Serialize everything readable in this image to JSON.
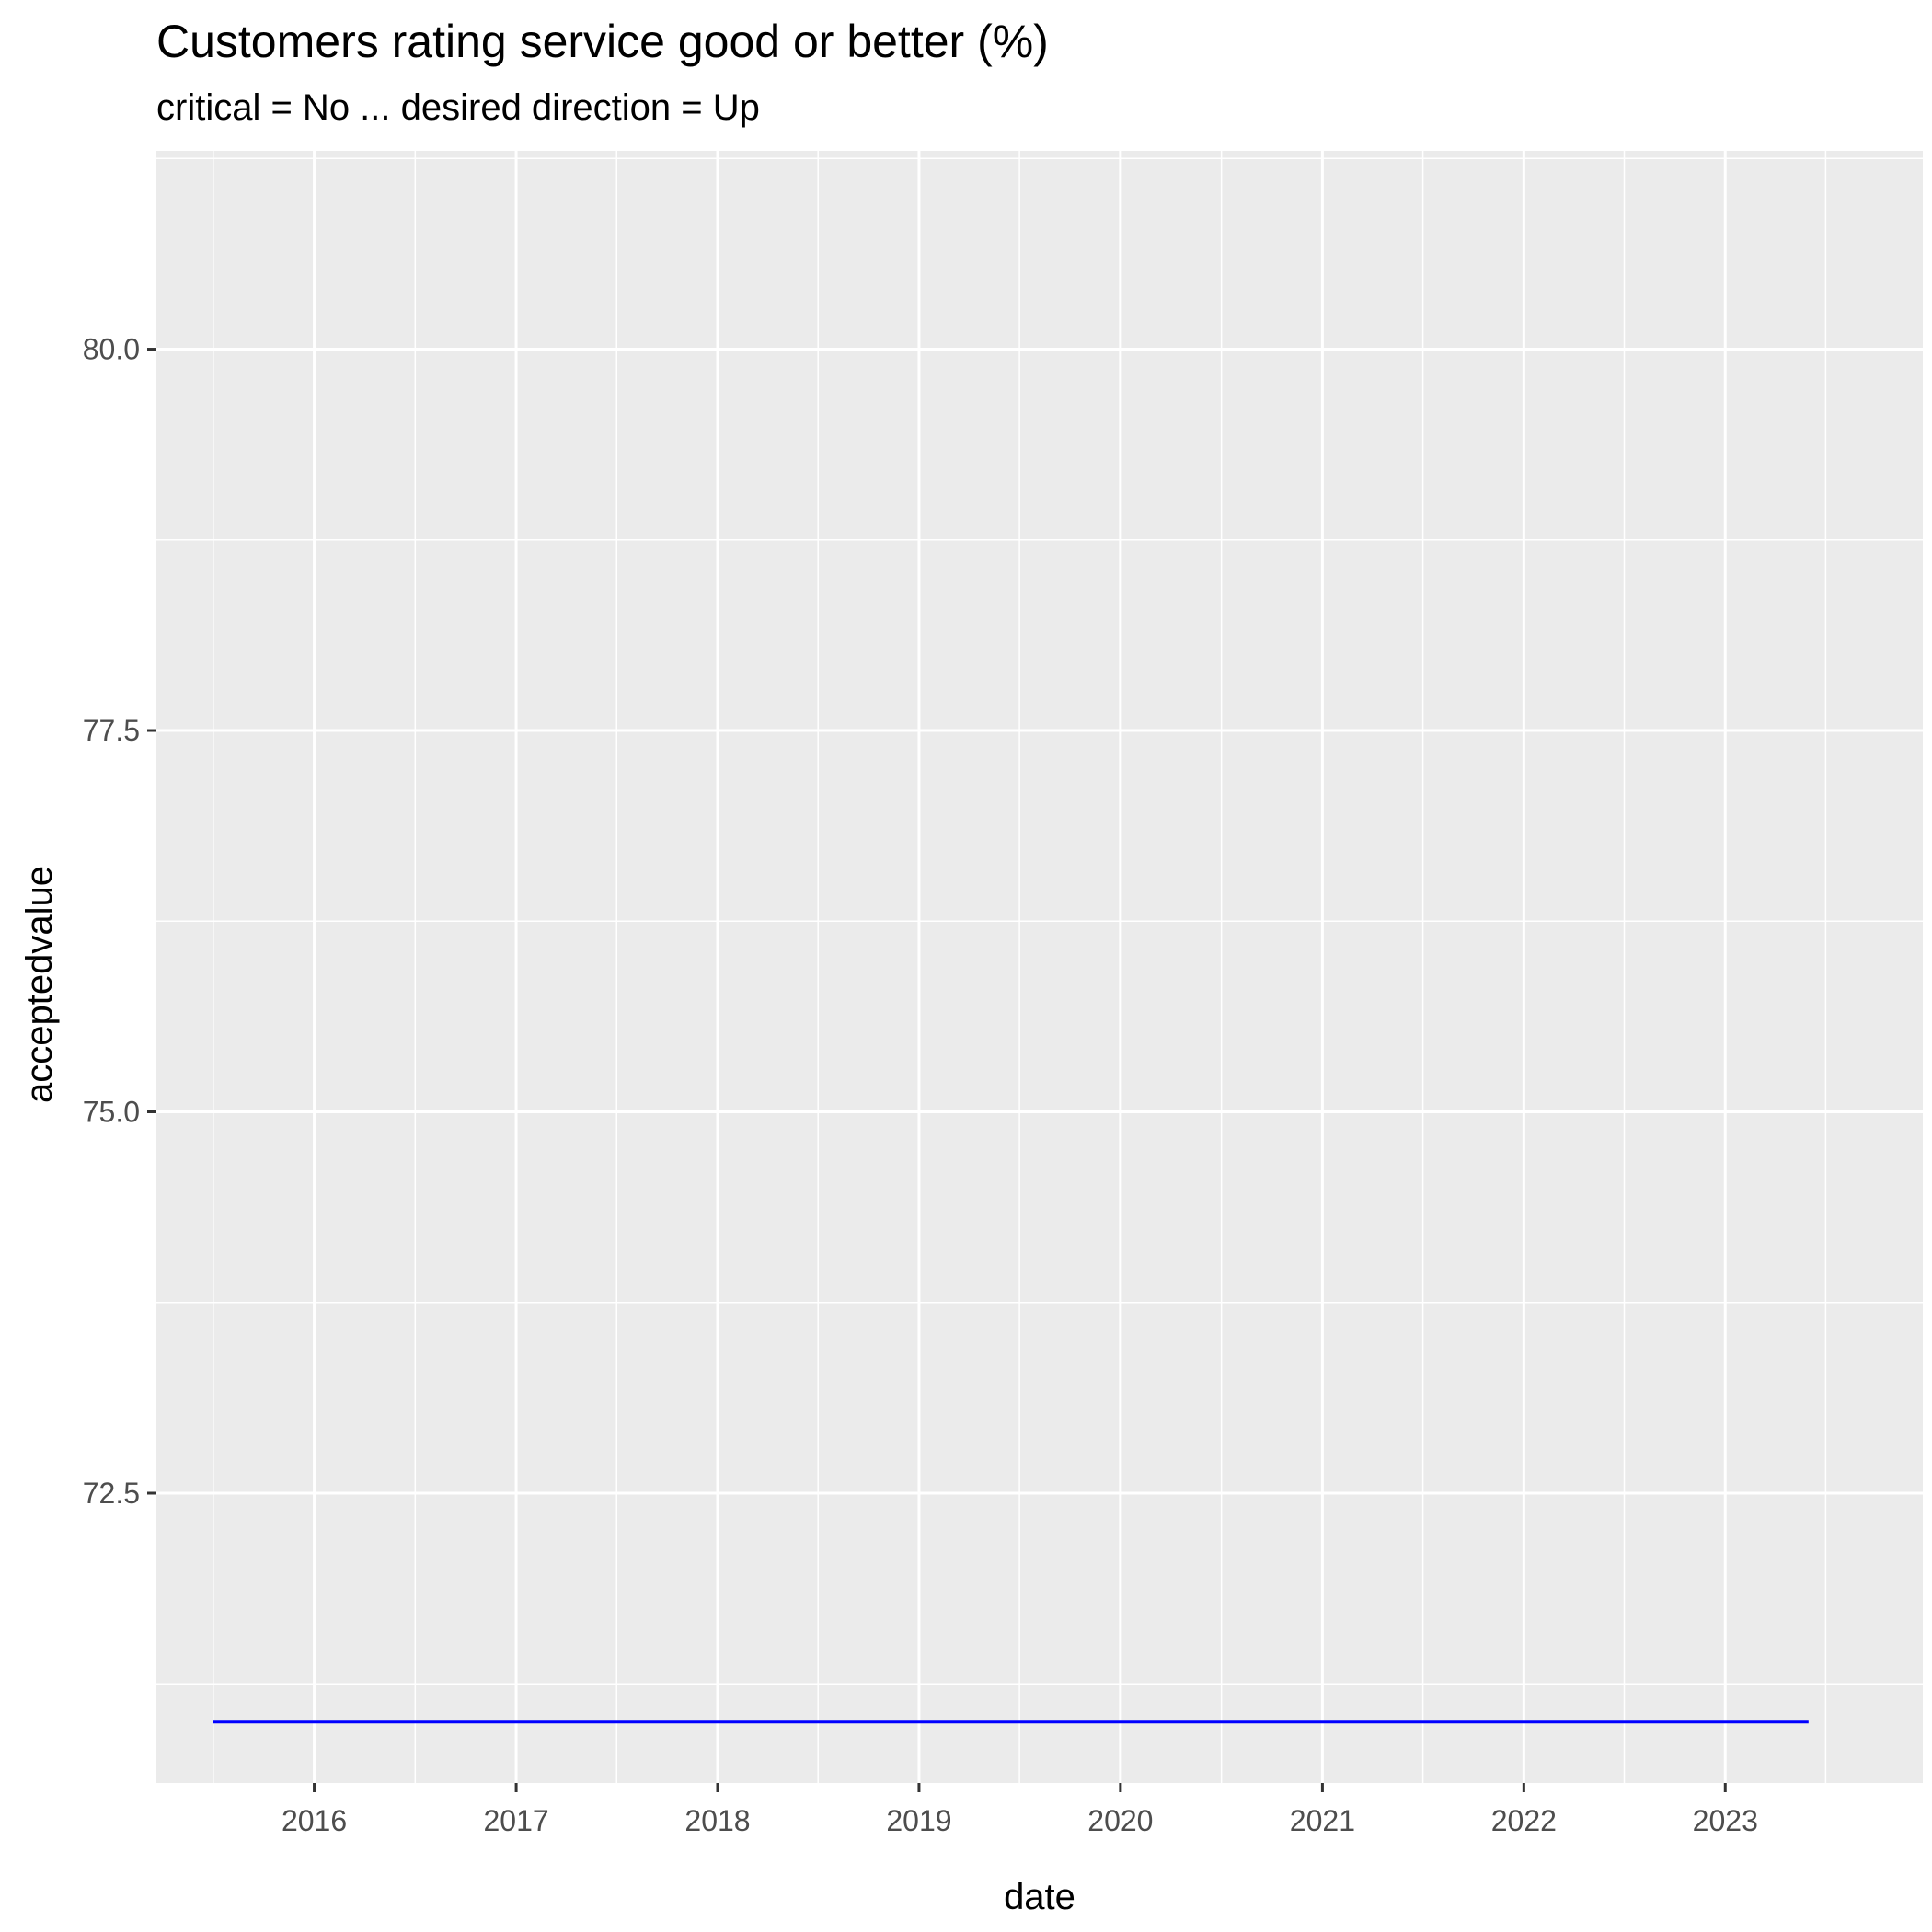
{
  "chart_data": {
    "type": "line",
    "title": "Customers rating service good or better (%)",
    "subtitle": "critical = No ... desired direction = Up",
    "xlabel": "date",
    "ylabel": "acceptedvalue",
    "x_tick_labels": [
      "2016",
      "2017",
      "2018",
      "2019",
      "2020",
      "2021",
      "2022",
      "2023"
    ],
    "y_tick_labels": [
      "72.5",
      "75.0",
      "77.5",
      "80.0"
    ],
    "y_ticks": [
      72.5,
      75.0,
      77.5,
      80.0
    ],
    "xlim": [
      "2015-03-21",
      "2023-12-25"
    ],
    "ylim": [
      70.6,
      81.3
    ],
    "grid": true,
    "series": [
      {
        "color": "#0000ff",
        "x": [
          "2015-07-01",
          "2023-06-01"
        ],
        "values": [
          71.0,
          71.0
        ]
      }
    ],
    "colors": {
      "panel_background": "#ebebeb",
      "grid": "#ffffff",
      "line": "#0000ff"
    }
  }
}
